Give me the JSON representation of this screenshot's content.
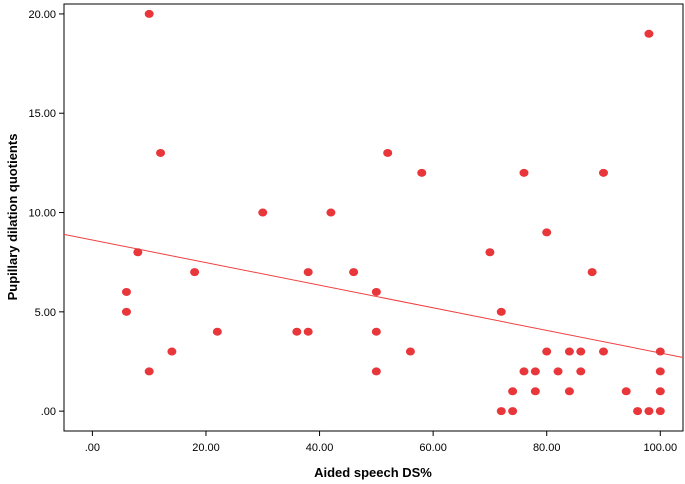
{
  "chart_data": {
    "type": "scatter",
    "title": "",
    "xlabel": "Aided speech DS%",
    "ylabel": "Pupillary dilation quotients",
    "xlim": [
      -5,
      104
    ],
    "ylim": [
      -1,
      20.5
    ],
    "x_ticks": [
      0,
      20,
      40,
      60,
      80,
      100
    ],
    "x_tick_labels": [
      ".00",
      "20.00",
      "40.00",
      "60.00",
      "80.00",
      "100.00"
    ],
    "y_ticks": [
      0,
      5,
      10,
      15,
      20
    ],
    "y_tick_labels": [
      ".00",
      "5.00",
      "10.00",
      "15.00",
      "20.00"
    ],
    "grid": false,
    "legend": "none",
    "point_color": "#e8363a",
    "line_color": "#f04040",
    "points": [
      {
        "x": 6,
        "y": 6
      },
      {
        "x": 6,
        "y": 5
      },
      {
        "x": 8,
        "y": 8
      },
      {
        "x": 10,
        "y": 20
      },
      {
        "x": 10,
        "y": 2
      },
      {
        "x": 12,
        "y": 13
      },
      {
        "x": 14,
        "y": 3
      },
      {
        "x": 18,
        "y": 7
      },
      {
        "x": 22,
        "y": 4
      },
      {
        "x": 30,
        "y": 10
      },
      {
        "x": 36,
        "y": 4
      },
      {
        "x": 38,
        "y": 4
      },
      {
        "x": 38,
        "y": 7
      },
      {
        "x": 42,
        "y": 10
      },
      {
        "x": 46,
        "y": 7
      },
      {
        "x": 50,
        "y": 6
      },
      {
        "x": 50,
        "y": 4
      },
      {
        "x": 50,
        "y": 2
      },
      {
        "x": 52,
        "y": 13
      },
      {
        "x": 56,
        "y": 3
      },
      {
        "x": 58,
        "y": 12
      },
      {
        "x": 70,
        "y": 8
      },
      {
        "x": 72,
        "y": 5
      },
      {
        "x": 72,
        "y": 0
      },
      {
        "x": 74,
        "y": 1
      },
      {
        "x": 74,
        "y": 0
      },
      {
        "x": 76,
        "y": 12
      },
      {
        "x": 76,
        "y": 2
      },
      {
        "x": 78,
        "y": 2
      },
      {
        "x": 78,
        "y": 1
      },
      {
        "x": 80,
        "y": 9
      },
      {
        "x": 80,
        "y": 3
      },
      {
        "x": 82,
        "y": 2
      },
      {
        "x": 84,
        "y": 3
      },
      {
        "x": 84,
        "y": 1
      },
      {
        "x": 86,
        "y": 3
      },
      {
        "x": 86,
        "y": 2
      },
      {
        "x": 88,
        "y": 7
      },
      {
        "x": 90,
        "y": 12
      },
      {
        "x": 90,
        "y": 3
      },
      {
        "x": 94,
        "y": 1
      },
      {
        "x": 96,
        "y": 0
      },
      {
        "x": 98,
        "y": 19
      },
      {
        "x": 98,
        "y": 0
      },
      {
        "x": 100,
        "y": 3
      },
      {
        "x": 100,
        "y": 2
      },
      {
        "x": 100,
        "y": 1
      },
      {
        "x": 100,
        "y": 0
      }
    ],
    "fit_line": {
      "x": [
        -5,
        104
      ],
      "y": [
        8.9,
        2.7
      ]
    }
  }
}
